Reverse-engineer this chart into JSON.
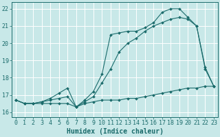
{
  "xlabel": "Humidex (Indice chaleur)",
  "xlim": [
    -0.5,
    23.5
  ],
  "ylim": [
    15.7,
    22.4
  ],
  "yticks": [
    16,
    17,
    18,
    19,
    20,
    21,
    22
  ],
  "xticks": [
    0,
    1,
    2,
    3,
    4,
    5,
    6,
    7,
    8,
    9,
    10,
    11,
    12,
    13,
    14,
    15,
    16,
    17,
    18,
    19,
    20,
    21,
    22,
    23
  ],
  "background_color": "#c8e8e8",
  "grid_color": "#aed4d4",
  "line_color": "#1a6b6b",
  "line1_y": [
    16.7,
    16.5,
    16.5,
    16.5,
    16.5,
    16.5,
    16.5,
    16.3,
    16.5,
    16.6,
    16.7,
    16.7,
    16.7,
    16.8,
    16.8,
    16.9,
    17.0,
    17.1,
    17.2,
    17.3,
    17.4,
    17.4,
    17.5,
    17.5
  ],
  "line2_y": [
    16.7,
    16.5,
    16.5,
    16.6,
    16.7,
    16.8,
    16.9,
    16.3,
    16.6,
    16.9,
    17.7,
    18.5,
    19.5,
    20.0,
    20.3,
    20.7,
    21.0,
    21.2,
    21.4,
    21.5,
    21.4,
    21.0,
    18.6,
    17.5
  ],
  "line3_y": [
    16.7,
    16.5,
    16.5,
    16.6,
    16.8,
    17.1,
    17.4,
    16.3,
    16.7,
    17.2,
    18.2,
    20.5,
    20.6,
    20.7,
    20.7,
    20.9,
    21.2,
    21.8,
    22.0,
    22.0,
    21.5,
    21.0,
    18.5,
    17.5
  ],
  "font_size_label": 7,
  "font_size_tick": 6.0
}
